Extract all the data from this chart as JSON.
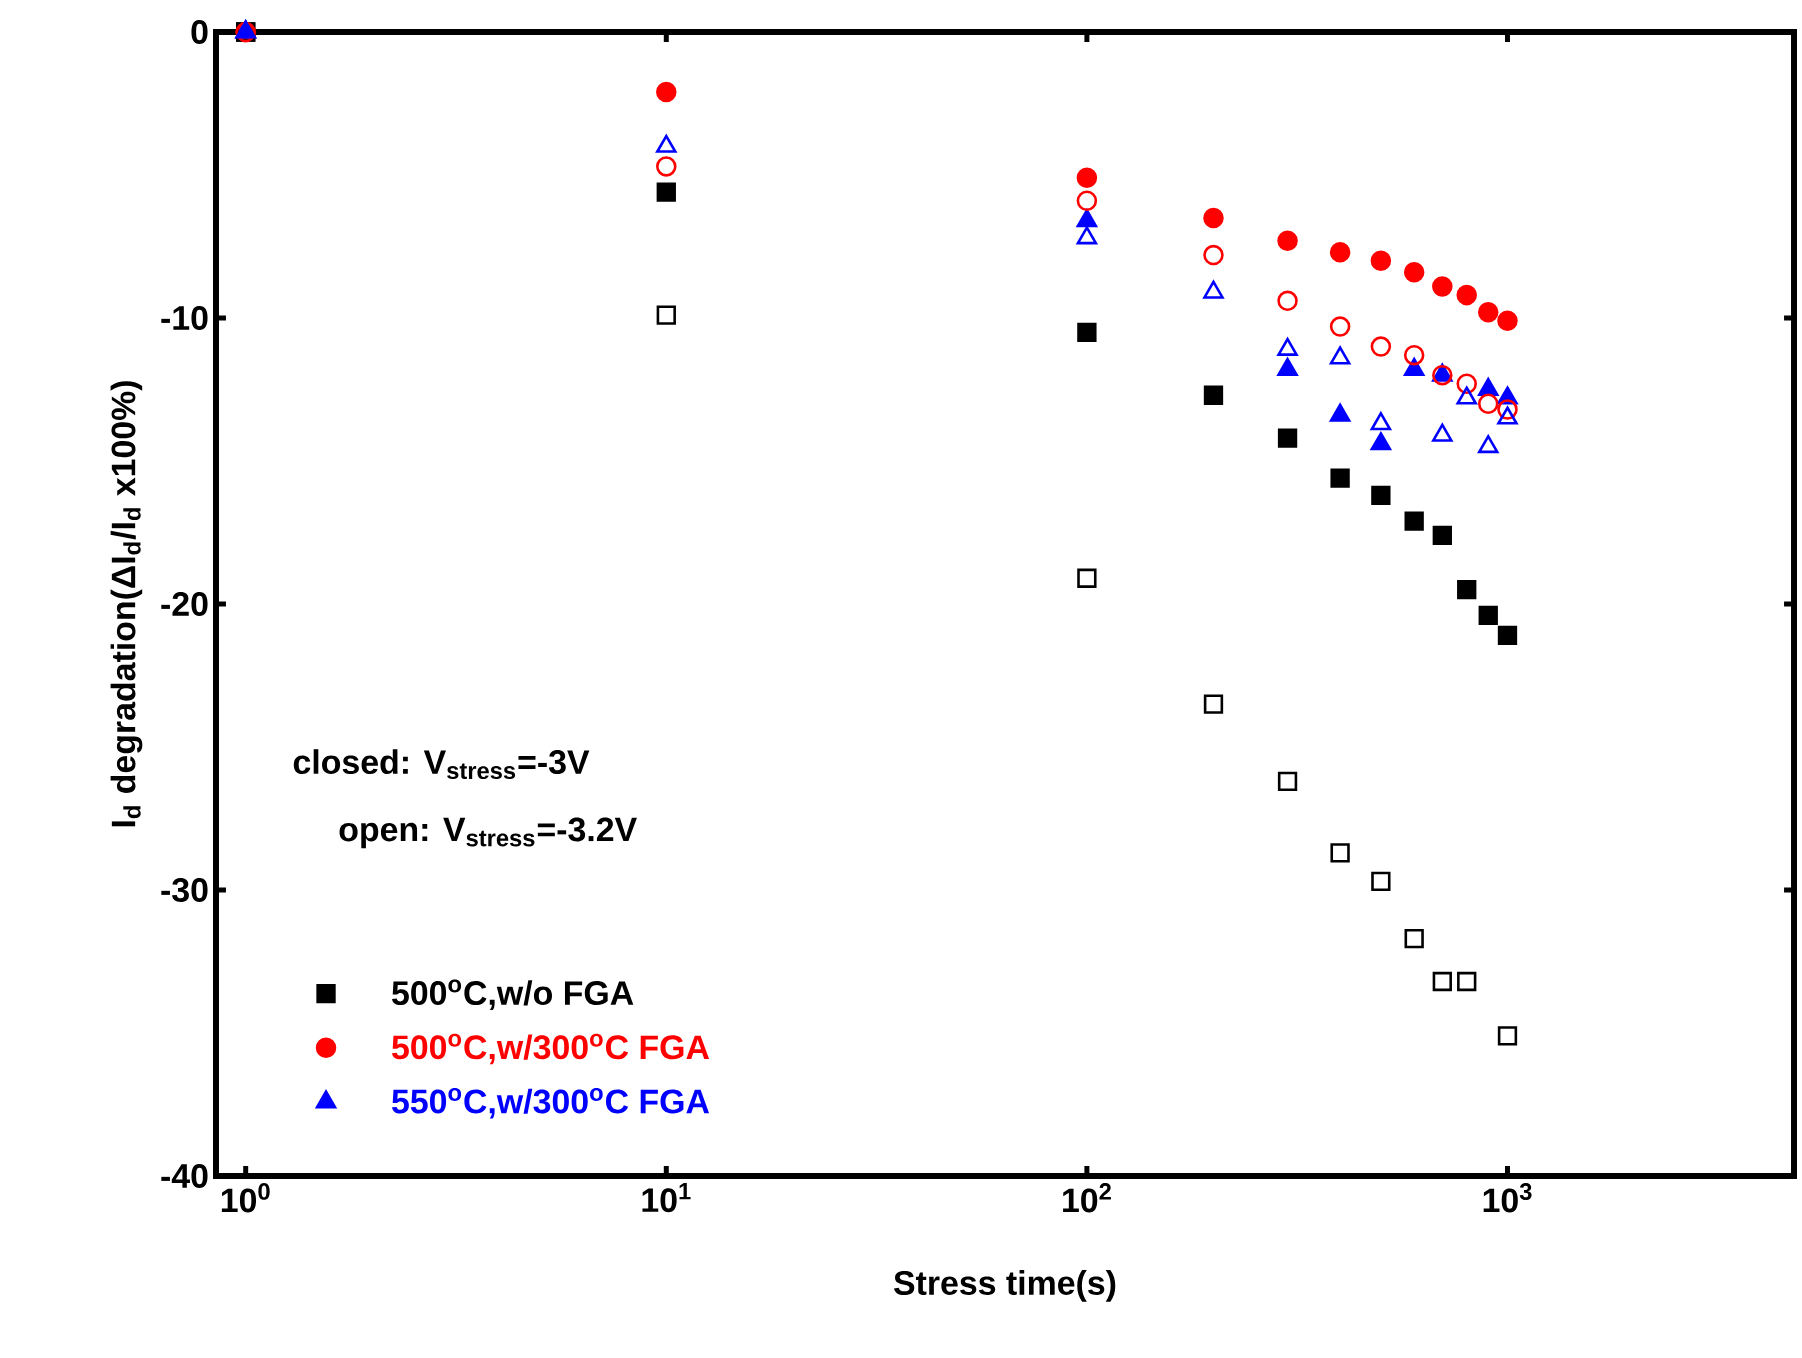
{
  "chart_data": {
    "type": "scatter",
    "xlabel": "Stress time(s)",
    "ylabel": "I$_{d}$ degradation(ΔI$_{d}$/I$_{d}$ x100%)",
    "log": "x",
    "xlim": [
      0.85,
      4800
    ],
    "ylim": [
      -40,
      0
    ],
    "xticks": [
      {
        "value": 1,
        "label": "10$^{0}$"
      },
      {
        "value": 10,
        "label": "10$^{1}$"
      },
      {
        "value": 100,
        "label": "10$^{2}$"
      },
      {
        "value": 1000,
        "label": "10$^{3}$"
      }
    ],
    "yticks": [
      -40,
      -30,
      -20,
      -10,
      0
    ],
    "x": [
      1,
      10,
      100,
      200,
      300,
      400,
      500,
      600,
      700,
      800,
      900,
      1000
    ],
    "legend": "bottom left",
    "grid": false,
    "annotations": [
      "closed: V$_{stress}$=-3V",
      "open: V$_{stress}$=-3.2V"
    ],
    "series": [
      {
        "name": "500$^{o}$C,w/o FGA",
        "color": "#000000",
        "marker": "square",
        "values": [
          0,
          -5.6,
          -10.5,
          -12.7,
          -14.2,
          -15.6,
          -16.2,
          -17.1,
          -17.6,
          -19.5,
          -20.4,
          -21.1
        ]
      },
      {
        "name": "500$^{o}$C,w/300$^{o}$C FGA",
        "color": "#ff0000",
        "marker": "circle",
        "values": [
          0,
          -2.1,
          -5.1,
          -6.5,
          -7.3,
          -7.7,
          -8.0,
          -8.4,
          -8.9,
          -9.2,
          -9.8,
          -10.1
        ]
      },
      {
        "name": "550$^{o}$C,w/300$^{o}$C FGA",
        "color": "#0000ff",
        "marker": "triangle",
        "values": [
          0,
          null,
          -6.6,
          null,
          -11.8,
          -13.4,
          -14.4,
          -11.8,
          -12.0,
          null,
          -12.5,
          -12.8
        ]
      },
      {
        "color": "#000000",
        "marker": "square",
        "values": [
          0,
          -9.9,
          -19.1,
          -23.5,
          -26.2,
          -28.7,
          -29.7,
          -31.7,
          -33.2,
          -33.2,
          null,
          -35.1
        ]
      },
      {
        "color": "#ff0000",
        "marker": "circle",
        "values": [
          0,
          -4.7,
          -5.9,
          -7.8,
          -9.4,
          -10.3,
          -11.0,
          -11.3,
          -12.0,
          -12.3,
          -13.0,
          -13.2
        ]
      },
      {
        "color": "#0000ff",
        "marker": "triangle",
        "values": [
          0,
          -4.0,
          -7.2,
          -9.1,
          -11.1,
          -11.4,
          -13.7,
          null,
          -14.1,
          -12.8,
          -14.5,
          -13.5
        ]
      }
    ]
  }
}
